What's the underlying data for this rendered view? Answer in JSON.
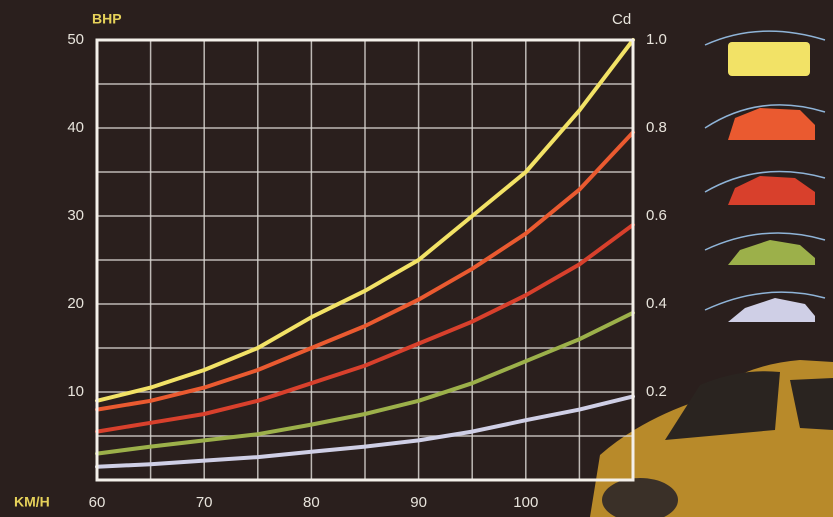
{
  "chart_data": {
    "type": "line",
    "y_label": "BHP",
    "y2_label": "Cd",
    "x_label": "KM/H",
    "x": [
      60,
      65,
      70,
      75,
      80,
      85,
      90,
      95,
      100,
      105,
      110
    ],
    "xlim": [
      60,
      110
    ],
    "xticks": [
      60,
      70,
      80,
      90,
      100
    ],
    "ylim": [
      0,
      50
    ],
    "yticks": [
      10,
      20,
      30,
      40,
      50
    ],
    "y2lim": [
      0,
      1.0
    ],
    "y2ticks": [
      0.2,
      0.4,
      0.6,
      0.8,
      {
        "value": 1.0,
        "label": "1.0"
      }
    ],
    "grid": true,
    "series": [
      {
        "color": "#f2e266",
        "values": [
          9,
          10.5,
          12.5,
          15,
          18.5,
          21.5,
          25,
          30,
          35,
          42,
          50
        ]
      },
      {
        "color": "#ea5a30",
        "values": [
          8,
          9,
          10.5,
          12.5,
          15,
          17.5,
          20.5,
          24,
          28,
          33,
          39.5
        ]
      },
      {
        "color": "#d8402c",
        "values": [
          5.5,
          6.5,
          7.5,
          9,
          11,
          13,
          15.5,
          18,
          21,
          24.5,
          29
        ]
      },
      {
        "color": "#9cb04a",
        "values": [
          3,
          3.8,
          4.5,
          5.2,
          6.3,
          7.5,
          9,
          11,
          13.5,
          16,
          19
        ]
      },
      {
        "color": "#cfcfe6",
        "values": [
          1.5,
          1.8,
          2.2,
          2.6,
          3.2,
          3.8,
          4.5,
          5.5,
          6.8,
          8,
          9.5
        ]
      }
    ]
  }
}
